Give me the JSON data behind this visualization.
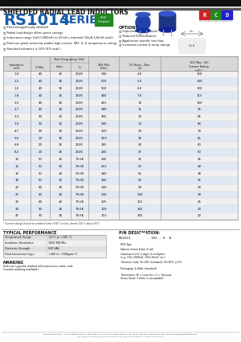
{
  "title_top": "SHIELDED RADIAL LEAD INDUCTORS",
  "series_part1": "RS1014",
  "series_part2": " SERIES",
  "features": [
    "Electromagnetically shielded",
    "Radial lead design offers space savings",
    "Inductance range 1mH (1000uH) to 47mH s standard (10uH-120mH avail.)",
    "Premium grade materials enable high current, SRF, Q, & temperature ratings",
    "Standard tolerance is 10% (5% avail.)"
  ],
  "options_title": "OPTIONS",
  "options": [
    "Improved Q & SRF levels",
    "Reduced DC Resistance",
    "Application-specific test freq.",
    "Increased current & temp ratings"
  ],
  "table_data": [
    [
      "1.0",
      "40",
      "1K",
      "252K",
      "740",
      "4.0",
      "150"
    ],
    [
      "1.2",
      "40",
      "1K",
      "252K",
      "670",
      "5.0",
      "140"
    ],
    [
      "1.5",
      "40",
      "1K",
      "252K",
      "560",
      "6.0",
      "130"
    ],
    [
      "1.8",
      "40",
      "1K",
      "252K",
      "460",
      "7.0",
      "115"
    ],
    [
      "2.2",
      "40",
      "1K",
      "252K",
      "415",
      "10",
      "100"
    ],
    [
      "2.7",
      "40",
      "1K",
      "252K",
      "380",
      "11",
      "95"
    ],
    [
      "3.3",
      "30",
      "1K",
      "252K",
      "360",
      "12",
      "85"
    ],
    [
      "3.9",
      "30",
      "1K",
      "252K",
      "340",
      "13",
      "80"
    ],
    [
      "4.7",
      "30",
      "1K",
      "252K",
      "320",
      "20",
      "70"
    ],
    [
      "5.6",
      "20",
      "1K",
      "252K",
      "310",
      "26",
      "65"
    ],
    [
      "6.8",
      "20",
      "1K",
      "252K",
      "285",
      "30",
      "60"
    ],
    [
      "8.2",
      "20",
      "1K",
      "252K",
      "260",
      "37",
      "50"
    ],
    [
      "10",
      "50",
      "1K",
      "79.6K",
      "245",
      "35",
      "45"
    ],
    [
      "12",
      "50",
      "1K",
      "79.6K",
      "210",
      "50",
      "40"
    ],
    [
      "15",
      "50",
      "1K",
      "79.6K",
      "180",
      "56",
      "38"
    ],
    [
      "18",
      "50",
      "1K",
      "79.6K",
      "160",
      "63",
      "35"
    ],
    [
      "22",
      "40",
      "1K",
      "79.6K",
      "140",
      "90",
      "30"
    ],
    [
      "27",
      "40",
      "1K",
      "79.6K",
      "130",
      "100",
      "28"
    ],
    [
      "33",
      "40",
      "1K",
      "79.6K",
      "125",
      "115",
      "25"
    ],
    [
      "39",
      "30",
      "1K",
      "79.6K",
      "120",
      "165",
      "23"
    ],
    [
      "47",
      "30",
      "1K",
      "79.6K",
      "110",
      "205",
      "22"
    ]
  ],
  "footnote": "* Current rating is based on ambient temp of 65°C or less, derate 1%/°C above 65°C",
  "typical_perf_title": "TYPICAL PERFORMANCE",
  "typical_perf_data": [
    [
      "Temperature Range",
      "-25°C to +105 °C"
    ],
    [
      "Insulation Resistance",
      "1000 MΩ Min."
    ],
    [
      "Dielectric Strength",
      "500 VAC"
    ],
    [
      "Fluid Immersion (typ.)",
      "+400 to +500ppm/°C"
    ]
  ],
  "marking_title": "MARKING",
  "marking_text": "Units are typically marked with inductance value code\n(custom marking available).",
  "pin_title": "P/N DESIGNATION:",
  "pin_example": "RS1014",
  "pin_code": "- 102 - K  B    ",
  "pin_fields": [
    "RCD Type",
    "Options (leave blank if std)",
    "Inductance(uH): 2-digits & multiplier\n(e.g. 102=1000uH, 103=10mH, etc.)",
    "Tolerance Code: K=10% (standard), M=20%, J=5%",
    "Packaging: S=Bulk (standard)",
    "Termination: W = Lead-free, G = Tin/Lead\n(leave blank if either is acceptable)"
  ],
  "footer_line1": "RCD Components Inc.  500 C Industrial Park Dr, Manchester NH, USA 03109  rcdcomponents.com  Tel 603-669-0054  Fax 603-669-5455  Email sales@rcdcomponents.com",
  "footer_line2": "FN11  Specifying product in accordance with RFi-011. Specifications subject to change without notice.",
  "bg_color": "#ffffff",
  "table_border": "#888888",
  "row_colors": [
    "#f0f0f0",
    "#e0e8f5"
  ],
  "header_row_color": "#d8d8d8",
  "blue_wm": "#3366aa",
  "rcd_r": "#cc2222",
  "rcd_c": "#228822",
  "rcd_d": "#2222cc"
}
